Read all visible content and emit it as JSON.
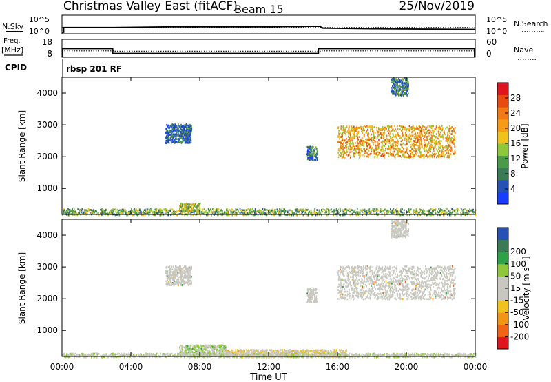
{
  "header": {
    "station": "Christmas Valley East (fitACF)",
    "beam": "Beam 15",
    "date": "25/Nov/2019"
  },
  "left_labels": {
    "nsky": "N.Sky",
    "freq_top": "Freq.",
    "freq_unit": "[MHz]",
    "cpid": "CPID"
  },
  "right_labels": {
    "nsearch": "N.Search",
    "nave": "Nave"
  },
  "cpid_text": "rbsp 201 RF",
  "colors": {
    "power": [
      "#1a3cff",
      "#2550b4",
      "#3a7a55",
      "#4a9a4a",
      "#8fc73a",
      "#f0c21e",
      "#f59c14",
      "#f07a14",
      "#e84a10",
      "#e0141e"
    ],
    "velocity": [
      "#e0141e",
      "#f06414",
      "#f09614",
      "#f0c21e",
      "#c8c8c0",
      "#c8c8c0",
      "#8fc73a",
      "#2ea046",
      "#3a7a55",
      "#2550b4"
    ],
    "ground_scatter": "#c8c8c0"
  },
  "chart_data": [
    {
      "type": "line",
      "name": "noise-panel",
      "x_unit": "hours UT",
      "series": [
        {
          "name": "N.Sky",
          "x": [
            0,
            0.1,
            0.1,
            3,
            6,
            12,
            15,
            15.1,
            18,
            24
          ],
          "y_log10": [
            0,
            0,
            0.8,
            0.8,
            0.9,
            0.9,
            1.0,
            0.7,
            0.6,
            0.5
          ]
        },
        {
          "name": "N.Search",
          "x": [
            0,
            12,
            24
          ],
          "y_log10": [
            0.8,
            0.8,
            0.8
          ]
        }
      ],
      "left_ticks": [
        "10^5",
        "10^0"
      ],
      "right_ticks": [
        "10^5",
        "10^0"
      ]
    },
    {
      "type": "line",
      "name": "frequency-panel",
      "x_unit": "hours UT",
      "series": [
        {
          "name": "Freq.",
          "x": [
            0.05,
            0.05,
            2.95,
            2.95,
            14.9,
            14.9,
            23.95,
            23.95
          ],
          "y": [
            8,
            14.7,
            14.7,
            10.7,
            10.7,
            14.7,
            14.7,
            8
          ]
        },
        {
          "name": "Nave",
          "x": [
            0,
            3,
            3,
            15,
            15,
            24
          ],
          "y": [
            29,
            29,
            27,
            27,
            29,
            29
          ]
        }
      ],
      "left_ticks": [
        "18",
        "8"
      ],
      "right_ticks": [
        "60",
        "0"
      ]
    },
    {
      "type": "heatmap",
      "name": "power-panel",
      "xlabel": "",
      "ylabel": "Slant Range [km]",
      "xlim": [
        0,
        24
      ],
      "ylim": [
        180,
        4500
      ],
      "yticks": [
        1000,
        2000,
        3000,
        4000
      ],
      "colorbar_label": "Power [dB]",
      "colorbar_ticks": [
        "4",
        "8",
        "12",
        "16",
        "20",
        "24",
        "28"
      ],
      "colorbar_range": [
        0,
        32
      ],
      "regions": [
        {
          "x0": 6.0,
          "x1": 7.5,
          "r0": 2450,
          "r1": 3050,
          "center_value": 6
        },
        {
          "x0": 16.0,
          "x1": 22.8,
          "r0": 2000,
          "r1": 3000,
          "center_value": 20
        },
        {
          "x0": 14.2,
          "x1": 14.8,
          "r0": 1900,
          "r1": 2350,
          "center_value": 8
        },
        {
          "x0": 19.1,
          "x1": 20.1,
          "r0": 3950,
          "r1": 4500,
          "center_value": 8
        },
        {
          "x0": 0,
          "x1": 24,
          "r0": 180,
          "r1": 380,
          "center_value": 12
        },
        {
          "x0": 6.8,
          "x1": 8.0,
          "r0": 300,
          "r1": 560,
          "center_value": 16
        }
      ]
    },
    {
      "type": "heatmap",
      "name": "velocity-panel",
      "xlabel": "Time UT",
      "ylabel": "Slant Range [km]",
      "xlim": [
        0,
        24
      ],
      "ylim": [
        180,
        4500
      ],
      "yticks": [
        1000,
        2000,
        3000,
        4000
      ],
      "xticks": [
        "00:00",
        "04:00",
        "08:00",
        "12:00",
        "16:00",
        "20:00",
        "00:00"
      ],
      "colorbar_label": "Velocity [m s⁻¹]",
      "colorbar_ticks": [
        "-200",
        "-100",
        "-50",
        "-15",
        "15",
        "50",
        "100",
        "200"
      ],
      "colorbar_range": [
        -250,
        250
      ],
      "regions": [
        {
          "x0": 6.0,
          "x1": 7.5,
          "r0": 2450,
          "r1": 3050,
          "center_value": 0
        },
        {
          "x0": 16.0,
          "x1": 22.8,
          "r0": 2000,
          "r1": 3050,
          "center_value": 0
        },
        {
          "x0": 14.2,
          "x1": 14.8,
          "r0": 1900,
          "r1": 2350,
          "center_value": 0
        },
        {
          "x0": 19.1,
          "x1": 20.1,
          "r0": 3950,
          "r1": 4500,
          "center_value": 0
        },
        {
          "x0": 6.8,
          "x1": 9.5,
          "r0": 200,
          "r1": 560,
          "center_value": 40
        },
        {
          "x0": 9.5,
          "x1": 16.5,
          "r0": 180,
          "r1": 420,
          "center_value": -40
        },
        {
          "x0": 0,
          "x1": 24,
          "r0": 180,
          "r1": 300,
          "center_value": 20
        }
      ]
    }
  ]
}
